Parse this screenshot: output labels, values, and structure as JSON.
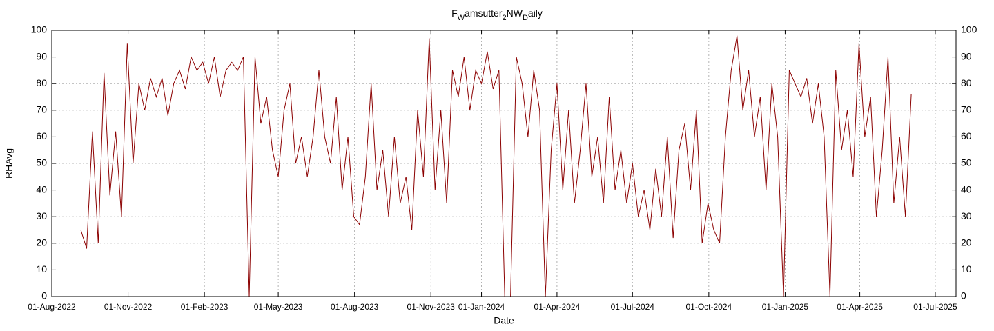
{
  "chart_data": {
    "type": "line",
    "title": [
      "F",
      "W",
      "amsutter",
      "2",
      "NW",
      "D",
      "aily"
    ],
    "title_subscript": [
      false,
      true,
      false,
      true,
      false,
      true,
      false
    ],
    "xlabel": "Date",
    "ylabel": "RHAvg",
    "color": "#8b0000",
    "grid": true,
    "xlim": [
      "2022-08-01",
      "2025-07-26"
    ],
    "xticks": [
      {
        "value": "2022-08-01",
        "label": "01-Aug-2022"
      },
      {
        "value": "2022-11-01",
        "label": "01-Nov-2022"
      },
      {
        "value": "2023-02-01",
        "label": "01-Feb-2023"
      },
      {
        "value": "2023-05-01",
        "label": "01-May-2023"
      },
      {
        "value": "2023-08-01",
        "label": "01-Aug-2023"
      },
      {
        "value": "2023-11-01",
        "label": "01-Nov-2023"
      },
      {
        "value": "2024-01-01",
        "label": "01-Jan-2024"
      },
      {
        "value": "2024-04-01",
        "label": "01-Apr-2024"
      },
      {
        "value": "2024-07-01",
        "label": "01-Jul-2024"
      },
      {
        "value": "2024-10-01",
        "label": "01-Oct-2024"
      },
      {
        "value": "2025-01-01",
        "label": "01-Jan-2025"
      },
      {
        "value": "2025-04-01",
        "label": "01-Apr-2025"
      },
      {
        "value": "2025-07-01",
        "label": "01-Jul-2025"
      }
    ],
    "ylim": [
      0,
      100
    ],
    "yticks": [
      0,
      10,
      20,
      30,
      40,
      50,
      60,
      70,
      80,
      90,
      100
    ],
    "y2lim": [
      0,
      100
    ],
    "y2ticks": [
      0,
      10,
      20,
      30,
      40,
      50,
      60,
      70,
      80,
      90,
      100
    ],
    "x": [
      "2022-09-05",
      "2022-09-12",
      "2022-09-19",
      "2022-09-26",
      "2022-10-03",
      "2022-10-10",
      "2022-10-17",
      "2022-10-24",
      "2022-10-31",
      "2022-11-07",
      "2022-11-14",
      "2022-11-21",
      "2022-11-28",
      "2022-12-05",
      "2022-12-12",
      "2022-12-19",
      "2022-12-26",
      "2023-01-02",
      "2023-01-09",
      "2023-01-16",
      "2023-01-23",
      "2023-01-30",
      "2023-02-06",
      "2023-02-13",
      "2023-02-20",
      "2023-02-27",
      "2023-03-06",
      "2023-03-13",
      "2023-03-20",
      "2023-03-27",
      "2023-04-03",
      "2023-04-10",
      "2023-04-17",
      "2023-04-24",
      "2023-05-01",
      "2023-05-08",
      "2023-05-15",
      "2023-05-22",
      "2023-05-29",
      "2023-06-05",
      "2023-06-12",
      "2023-06-19",
      "2023-06-26",
      "2023-07-03",
      "2023-07-10",
      "2023-07-17",
      "2023-07-24",
      "2023-07-31",
      "2023-08-07",
      "2023-08-14",
      "2023-08-21",
      "2023-08-28",
      "2023-09-04",
      "2023-09-11",
      "2023-09-18",
      "2023-09-25",
      "2023-10-02",
      "2023-10-09",
      "2023-10-16",
      "2023-10-23",
      "2023-10-30",
      "2023-11-06",
      "2023-11-13",
      "2023-11-20",
      "2023-11-27",
      "2023-12-04",
      "2023-12-11",
      "2023-12-18",
      "2023-12-25",
      "2024-01-01",
      "2024-01-08",
      "2024-01-15",
      "2024-01-22",
      "2024-01-29",
      "2024-02-05",
      "2024-02-12",
      "2024-02-19",
      "2024-02-26",
      "2024-03-04",
      "2024-03-11",
      "2024-03-18",
      "2024-03-25",
      "2024-04-01",
      "2024-04-08",
      "2024-04-15",
      "2024-04-22",
      "2024-04-29",
      "2024-05-06",
      "2024-05-13",
      "2024-05-20",
      "2024-05-27",
      "2024-06-03",
      "2024-06-10",
      "2024-06-17",
      "2024-06-24",
      "2024-07-01",
      "2024-07-08",
      "2024-07-15",
      "2024-07-22",
      "2024-07-29",
      "2024-08-05",
      "2024-08-12",
      "2024-08-19",
      "2024-08-26",
      "2024-09-02",
      "2024-09-09",
      "2024-09-16",
      "2024-09-23",
      "2024-09-30",
      "2024-10-07",
      "2024-10-14",
      "2024-10-21",
      "2024-10-28",
      "2024-11-04",
      "2024-11-11",
      "2024-11-18",
      "2024-11-25",
      "2024-12-02",
      "2024-12-09",
      "2024-12-16",
      "2024-12-23",
      "2024-12-30",
      "2025-01-06",
      "2025-01-13",
      "2025-01-20",
      "2025-01-27",
      "2025-02-03",
      "2025-02-10",
      "2025-02-17",
      "2025-02-24",
      "2025-03-03",
      "2025-03-10",
      "2025-03-17",
      "2025-03-24",
      "2025-03-31",
      "2025-04-07",
      "2025-04-14",
      "2025-04-21",
      "2025-04-28",
      "2025-05-05",
      "2025-05-12",
      "2025-05-19",
      "2025-05-26",
      "2025-06-02"
    ],
    "values": [
      25,
      18,
      62,
      20,
      84,
      38,
      62,
      30,
      95,
      50,
      80,
      70,
      82,
      75,
      82,
      68,
      80,
      85,
      78,
      90,
      85,
      88,
      80,
      90,
      75,
      85,
      88,
      85,
      90,
      0,
      90,
      65,
      75,
      55,
      45,
      70,
      80,
      50,
      60,
      45,
      60,
      85,
      60,
      50,
      75,
      40,
      60,
      30,
      27,
      45,
      80,
      40,
      55,
      30,
      60,
      35,
      45,
      25,
      70,
      45,
      97,
      40,
      70,
      35,
      85,
      75,
      90,
      70,
      85,
      80,
      92,
      78,
      85,
      0,
      0,
      90,
      80,
      60,
      85,
      70,
      0,
      55,
      80,
      40,
      70,
      35,
      55,
      80,
      45,
      60,
      35,
      75,
      40,
      55,
      35,
      50,
      30,
      40,
      25,
      48,
      30,
      60,
      22,
      55,
      65,
      40,
      70,
      20,
      35,
      25,
      20,
      60,
      85,
      98,
      70,
      85,
      60,
      75,
      40,
      80,
      60,
      0,
      85,
      80,
      75,
      82,
      65,
      80,
      60,
      0,
      85,
      55,
      70,
      45,
      95,
      60,
      75,
      30,
      55,
      90,
      35,
      60,
      30,
      76
    ]
  }
}
